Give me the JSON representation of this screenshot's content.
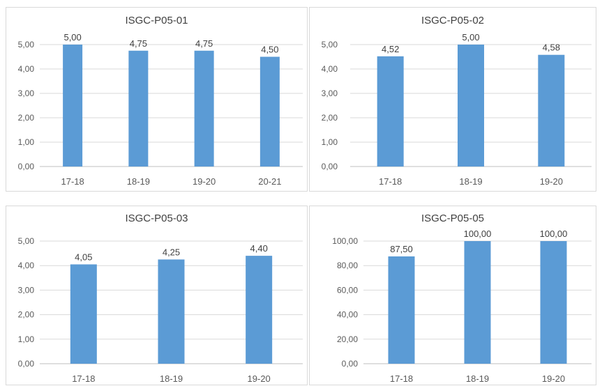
{
  "chart_data": [
    {
      "type": "bar",
      "title": "ISGC-P05-01",
      "categories": [
        "17-18",
        "18-19",
        "19-20",
        "20-21"
      ],
      "values": [
        5.0,
        4.75,
        4.75,
        4.5
      ],
      "value_labels": [
        "5,00",
        "4,75",
        "4,75",
        "4,50"
      ],
      "ylim": [
        0,
        5
      ],
      "yticks": [
        "0,00",
        "1,00",
        "2,00",
        "3,00",
        "4,00",
        "5,00"
      ],
      "bar_color": "#5b9bd5",
      "grid": true
    },
    {
      "type": "bar",
      "title": "ISGC-P05-02",
      "categories": [
        "17-18",
        "18-19",
        "19-20"
      ],
      "values": [
        4.52,
        5.0,
        4.58
      ],
      "value_labels": [
        "4,52",
        "5,00",
        "4,58"
      ],
      "ylim": [
        0,
        5
      ],
      "yticks": [
        "0,00",
        "1,00",
        "2,00",
        "3,00",
        "4,00",
        "5,00"
      ],
      "bar_color": "#5b9bd5",
      "grid": true
    },
    {
      "type": "bar",
      "title": "ISGC-P05-03",
      "categories": [
        "17-18",
        "18-19",
        "19-20"
      ],
      "values": [
        4.05,
        4.25,
        4.4
      ],
      "value_labels": [
        "4,05",
        "4,25",
        "4,40"
      ],
      "ylim": [
        0,
        5
      ],
      "yticks": [
        "0,00",
        "1,00",
        "2,00",
        "3,00",
        "4,00",
        "5,00"
      ],
      "bar_color": "#5b9bd5",
      "grid": true
    },
    {
      "type": "bar",
      "title": "ISGC-P05-05",
      "categories": [
        "17-18",
        "18-19",
        "19-20"
      ],
      "values": [
        87.5,
        100.0,
        100.0
      ],
      "value_labels": [
        "87,50",
        "100,00",
        "100,00"
      ],
      "ylim": [
        0,
        100
      ],
      "yticks": [
        "0,00",
        "20,00",
        "40,00",
        "60,00",
        "80,00",
        "100,00"
      ],
      "bar_color": "#5b9bd5",
      "grid": true
    }
  ]
}
